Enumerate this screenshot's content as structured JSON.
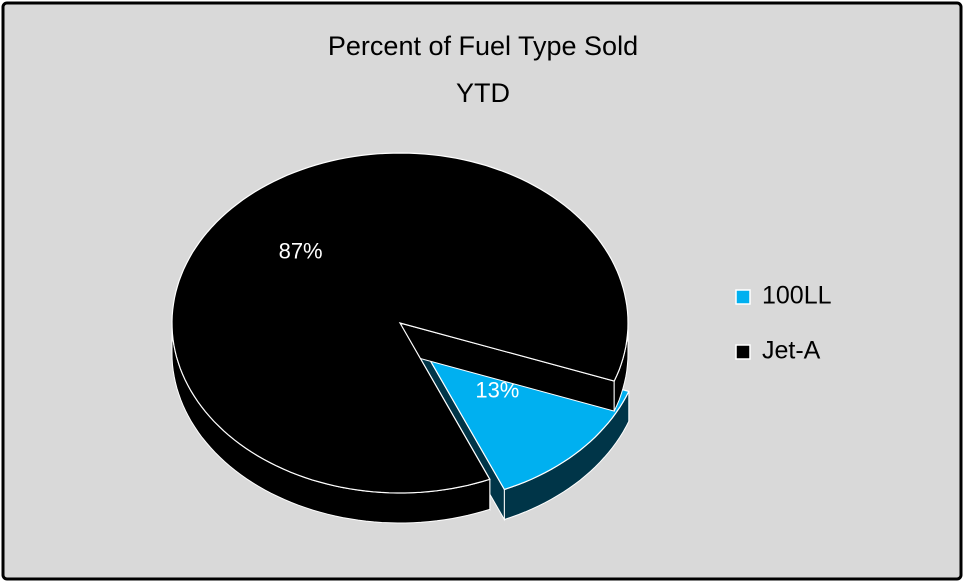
{
  "chart_data": {
    "type": "pie",
    "title": [
      "Percent of Fuel Type Sold",
      "YTD"
    ],
    "categories": [
      "100LL",
      "Jet-A"
    ],
    "values": [
      13,
      87
    ],
    "value_labels": [
      "13%",
      "87%"
    ],
    "colors": [
      "#00b0f0",
      "#000000"
    ],
    "legend": "right"
  }
}
